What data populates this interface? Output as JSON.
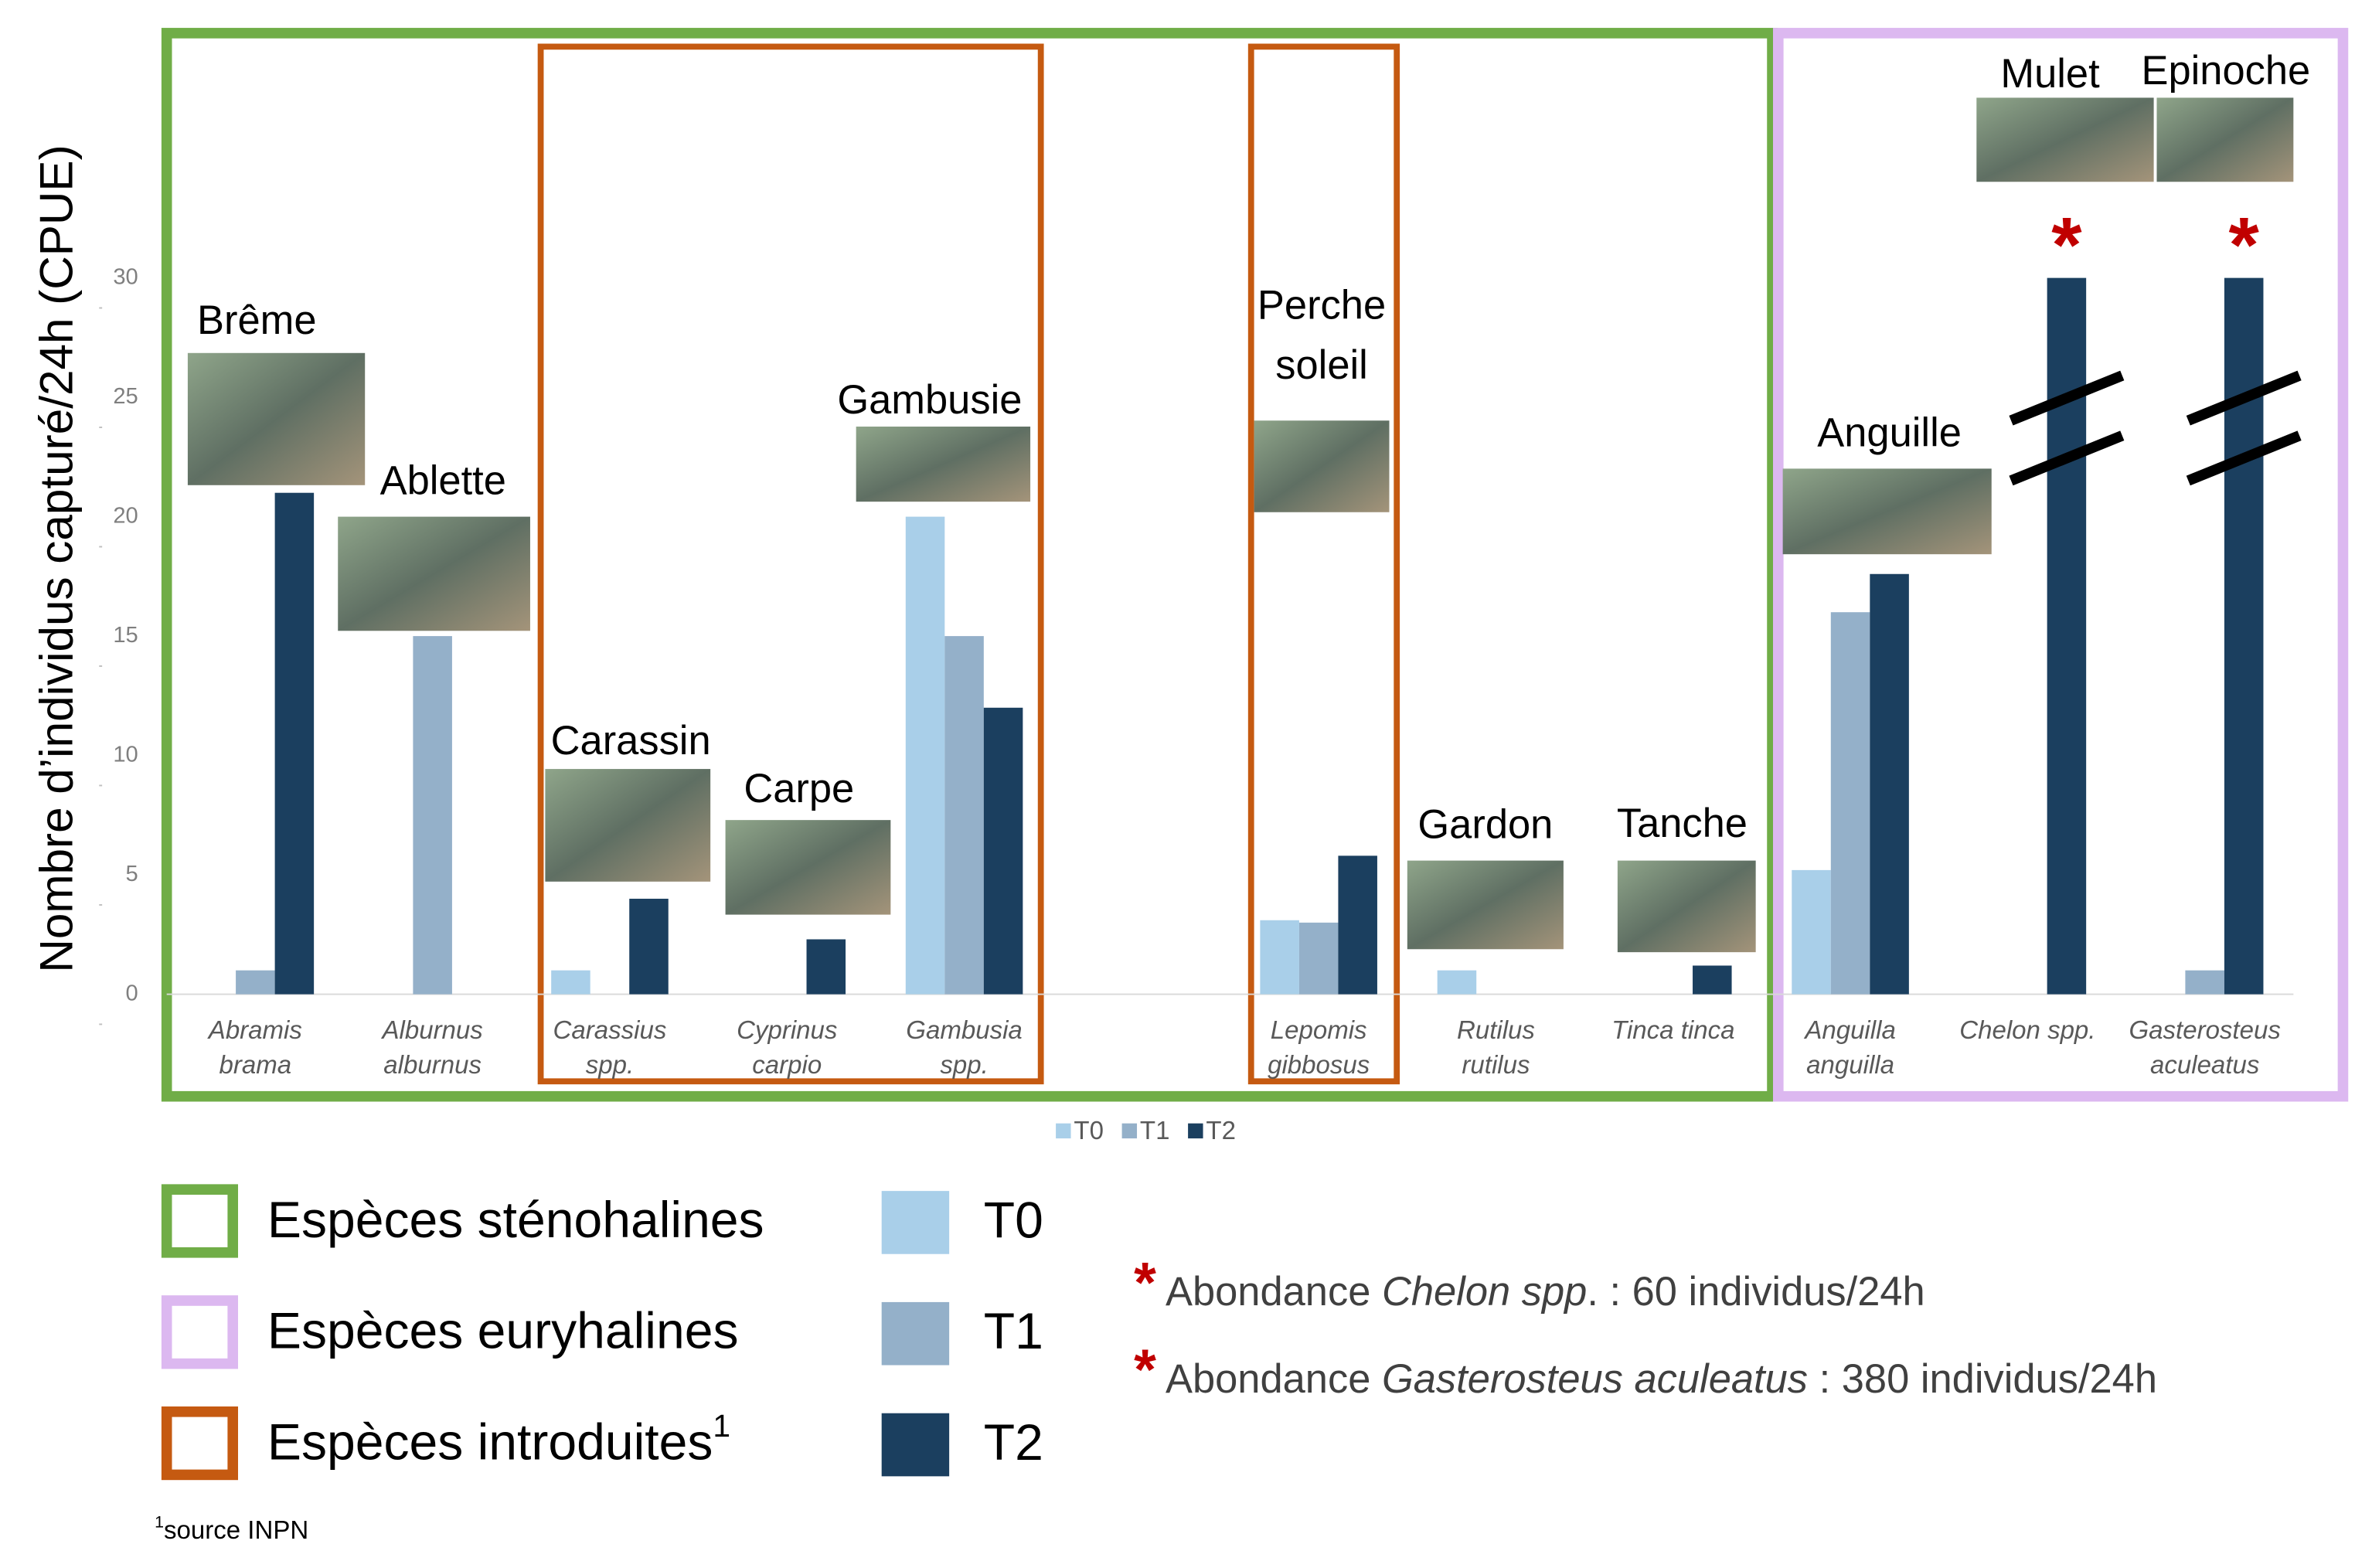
{
  "chart_data": {
    "type": "bar",
    "y_label": "Nombre d’individus capturé/24h (CPUE)",
    "categories": [
      "Abramis\nbrama",
      "Alburnus\nalburnus",
      "Carassius\nspp.",
      "Cyprinus\ncarpio",
      "Gambusia\nspp.",
      null,
      "Lepomis\ngibbosus",
      "Rutilus\nrutilus",
      "Tinca tinca",
      "Anguilla\nanguilla",
      "Chelon spp.",
      "Gasterosteus\naculeatus"
    ],
    "fish_labels": [
      "Brême",
      "Ablette",
      "Carassin",
      "Carpe",
      "Gambusie",
      null,
      "Perche\nsoleil",
      "Gardon",
      "Tanche",
      "Anguille",
      "Mulet",
      "Epinoche"
    ],
    "series": [
      {
        "name": "T0",
        "color": "#a9cfe9",
        "values": [
          0,
          0,
          1,
          0,
          20,
          null,
          3.1,
          1,
          0,
          5.2,
          0,
          0
        ]
      },
      {
        "name": "T1",
        "color": "#94b0c9",
        "values": [
          1,
          15,
          0,
          0,
          15,
          null,
          3,
          0,
          0,
          16,
          0,
          1
        ]
      },
      {
        "name": "T2",
        "color": "#1b3f5f",
        "values": [
          21,
          0,
          4,
          2.3,
          12,
          null,
          5.8,
          0,
          1.2,
          17.6,
          60,
          380
        ]
      }
    ],
    "ylim": [
      0,
      30
    ],
    "yticks": [
      0,
      5,
      10,
      15,
      20,
      25,
      30
    ],
    "axis_break": true,
    "break_marker": "*",
    "break_color": "#c00000",
    "groups": [
      {
        "label": "Espèces sténohalines",
        "color": "#70ad47"
      },
      {
        "label": "Espèces euryhalines",
        "color": "#dcb8f0"
      },
      {
        "label": "Espèces introduites",
        "sup": "1",
        "color": "#c55a11"
      }
    ],
    "notes": [
      {
        "prefix": "Abondance ",
        "italic": "Chelon spp",
        "suffix": ". : 60 individus/24h"
      },
      {
        "prefix": "Abondance ",
        "italic": "Gasterosteus aculeatus",
        "suffix": " : 380 individus/24h"
      }
    ],
    "footnote": {
      "sup": "1",
      "text": "source INPN"
    }
  }
}
